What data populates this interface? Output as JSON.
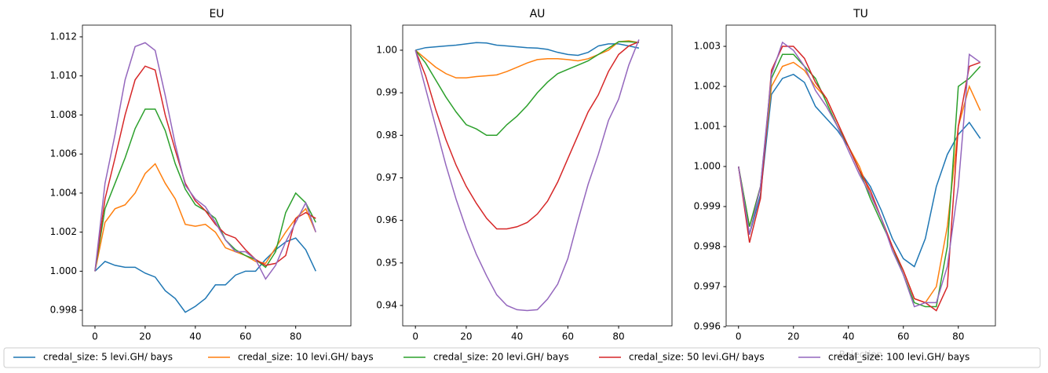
{
  "chart_data": [
    {
      "type": "line",
      "title": "EU",
      "x": [
        0,
        4,
        8,
        12,
        16,
        20,
        24,
        28,
        32,
        36,
        40,
        44,
        48,
        52,
        56,
        60,
        64,
        68,
        72,
        76,
        80,
        84,
        88
      ],
      "xlim": [
        -5,
        102
      ],
      "xticks": [
        0,
        20,
        40,
        60,
        80
      ],
      "ylim": [
        0.9972,
        1.0126
      ],
      "yticks": [
        0.998,
        {
          "value": 1,
          "label": "1.000"
        },
        1.002,
        1.004,
        1.006,
        1.008,
        {
          "value": 1.01,
          "label": "1.010"
        },
        1.012
      ],
      "series": [
        {
          "name": "credal_size: 5 levi.GH/ bays",
          "color": "#1f77b4",
          "values": [
            1.0,
            1.0005,
            1.0003,
            1.0002,
            1.0002,
            0.9999,
            0.9997,
            0.999,
            0.9986,
            0.9979,
            0.9982,
            0.9986,
            0.9993,
            0.9993,
            0.9998,
            1.0,
            1.0,
            1.0006,
            1.0011,
            1.0015,
            1.0017,
            1.0011,
            1.0
          ]
        },
        {
          "name": "credal_size: 10 levi.GH/ bays",
          "color": "#ff7f0e",
          "values": [
            1.0,
            1.0025,
            1.0032,
            1.0034,
            1.004,
            1.005,
            1.0055,
            1.0045,
            1.0037,
            1.0024,
            1.0023,
            1.0024,
            1.002,
            1.0012,
            1.001,
            1.0008,
            1.0005,
            1.0004,
            1.0012,
            1.002,
            1.0027,
            1.0032,
            1.002
          ]
        },
        {
          "name": "credal_size: 20 levi.GH/ bays",
          "color": "#2ca02c",
          "values": [
            1.0,
            1.0032,
            1.0045,
            1.0058,
            1.0073,
            1.0083,
            1.0083,
            1.0072,
            1.0055,
            1.0042,
            1.0034,
            1.0031,
            1.0027,
            1.0016,
            1.0011,
            1.0008,
            1.0006,
            1.0002,
            1.001,
            1.003,
            1.004,
            1.0035,
            1.0025
          ]
        },
        {
          "name": "credal_size: 50 levi.GH/ bays",
          "color": "#d62728",
          "values": [
            1.0,
            1.0037,
            1.0058,
            1.008,
            1.0098,
            1.0105,
            1.0103,
            1.008,
            1.0062,
            1.0045,
            1.0036,
            1.0031,
            1.0024,
            1.0019,
            1.0017,
            1.0011,
            1.0006,
            1.0003,
            1.0004,
            1.0008,
            1.0027,
            1.003,
            1.0027
          ]
        },
        {
          "name": "credal_size: 100 levi.GH/ bays",
          "color": "#9467bd",
          "values": [
            1.0,
            1.0045,
            1.007,
            1.0098,
            1.0115,
            1.0117,
            1.0113,
            1.009,
            1.0065,
            1.0044,
            1.0037,
            1.0033,
            1.0025,
            1.0016,
            1.001,
            1.001,
            1.0006,
            0.9996,
            1.0003,
            1.0015,
            1.0025,
            1.0035,
            1.002
          ]
        }
      ]
    },
    {
      "type": "line",
      "title": "AU",
      "x": [
        0,
        4,
        8,
        12,
        16,
        20,
        24,
        28,
        32,
        36,
        40,
        44,
        48,
        52,
        56,
        60,
        64,
        68,
        72,
        76,
        80,
        84,
        88
      ],
      "xlim": [
        -5,
        101
      ],
      "xticks": [
        0,
        20,
        40,
        60,
        80
      ],
      "ylim": [
        0.9352,
        1.0059
      ],
      "yticks": [
        0.94,
        0.95,
        0.96,
        0.97,
        0.98,
        0.99,
        {
          "value": 1,
          "label": "1.00"
        }
      ],
      "series": [
        {
          "color": "#1f77b4",
          "values": [
            1.0,
            1.0006,
            1.0008,
            1.001,
            1.0012,
            1.0015,
            1.0018,
            1.0017,
            1.0012,
            1.001,
            1.0008,
            1.0006,
            1.0005,
            1.0002,
            0.9995,
            0.999,
            0.9988,
            0.9995,
            1.001,
            1.0015,
            1.0015,
            1.001,
            1.0005
          ]
        },
        {
          "color": "#ff7f0e",
          "values": [
            1.0,
            0.998,
            0.996,
            0.9945,
            0.9935,
            0.9935,
            0.9938,
            0.994,
            0.9942,
            0.995,
            0.996,
            0.997,
            0.9978,
            0.998,
            0.998,
            0.9978,
            0.9975,
            0.998,
            0.999,
            1.0,
            1.002,
            1.0022,
            1.0018
          ]
        },
        {
          "color": "#2ca02c",
          "values": [
            1.0,
            0.997,
            0.993,
            0.989,
            0.9855,
            0.9825,
            0.9815,
            0.98,
            0.98,
            0.9825,
            0.9845,
            0.987,
            0.99,
            0.9925,
            0.9945,
            0.9955,
            0.9965,
            0.9975,
            0.999,
            1.0005,
            1.002,
            1.002,
            1.0018
          ]
        },
        {
          "color": "#d62728",
          "values": [
            1.0,
            0.994,
            0.986,
            0.979,
            0.973,
            0.968,
            0.964,
            0.9605,
            0.958,
            0.958,
            0.9585,
            0.9595,
            0.9615,
            0.9645,
            0.969,
            0.9745,
            0.98,
            0.9855,
            0.9895,
            0.995,
            0.999,
            1.001,
            1.002
          ]
        },
        {
          "color": "#9467bd",
          "values": [
            1.0,
            0.991,
            0.982,
            0.973,
            0.965,
            0.958,
            0.952,
            0.947,
            0.9425,
            0.94,
            0.939,
            0.9388,
            0.939,
            0.9415,
            0.945,
            0.951,
            0.96,
            0.9685,
            0.9755,
            0.9835,
            0.9885,
            0.9965,
            1.0025
          ]
        }
      ]
    },
    {
      "type": "line",
      "title": "TU",
      "xlabel": "Rejection",
      "x": [
        0,
        4,
        8,
        12,
        16,
        20,
        24,
        28,
        32,
        36,
        40,
        44,
        48,
        52,
        56,
        60,
        64,
        68,
        72,
        76,
        80,
        84,
        88
      ],
      "xlim": [
        -4.5,
        93.5
      ],
      "xticks": [
        0,
        20,
        40,
        60,
        80
      ],
      "ylim": [
        0.99602,
        1.00353
      ],
      "yticks": [
        0.996,
        0.997,
        0.998,
        0.999,
        {
          "value": 1,
          "label": "1.000"
        },
        1.001,
        1.002,
        1.003
      ],
      "series": [
        {
          "color": "#1f77b4",
          "values": [
            1.0,
            0.9983,
            0.9993,
            1.0018,
            1.0022,
            1.0023,
            1.0021,
            1.0015,
            1.0012,
            1.0009,
            1.0005,
            0.9999,
            0.9995,
            0.9989,
            0.9982,
            0.9977,
            0.9975,
            0.9982,
            0.9995,
            1.0003,
            1.0008,
            1.0011,
            1.0007
          ]
        },
        {
          "color": "#ff7f0e",
          "values": [
            1.0,
            0.9985,
            0.9995,
            1.002,
            1.0025,
            1.0026,
            1.0024,
            1.002,
            1.0017,
            1.0011,
            1.0005,
            1.0,
            0.9993,
            0.9987,
            0.998,
            0.9974,
            0.9967,
            0.9966,
            0.997,
            0.9985,
            1.001,
            1.002,
            1.0014
          ]
        },
        {
          "color": "#2ca02c",
          "values": [
            1.0,
            0.9985,
            0.9995,
            1.0022,
            1.0028,
            1.0028,
            1.0025,
            1.0022,
            1.0016,
            1.001,
            1.0005,
            0.9999,
            0.9992,
            0.9986,
            0.998,
            0.9973,
            0.9966,
            0.9965,
            0.9965,
            0.998,
            1.002,
            1.0022,
            1.0025
          ]
        },
        {
          "color": "#d62728",
          "values": [
            1.0,
            0.9981,
            0.9992,
            1.0024,
            1.003,
            1.003,
            1.0027,
            1.0021,
            1.0017,
            1.0011,
            1.0005,
            0.9999,
            0.9994,
            0.9987,
            0.998,
            0.9974,
            0.9967,
            0.9966,
            0.9964,
            0.997,
            1.001,
            1.0025,
            1.0026
          ]
        },
        {
          "color": "#9467bd",
          "values": [
            1.0,
            0.9983,
            0.9995,
            1.0023,
            1.0031,
            1.0029,
            1.0025,
            1.0019,
            1.0015,
            1.001,
            1.0004,
            0.9998,
            0.9993,
            0.9987,
            0.9979,
            0.9973,
            0.9965,
            0.9966,
            0.9966,
            0.9975,
            0.9995,
            1.0028,
            1.0026
          ]
        }
      ]
    }
  ]
}
